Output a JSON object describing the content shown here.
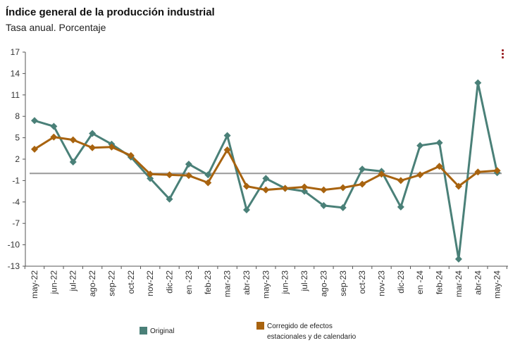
{
  "header": {
    "title": "Índice general de la producción industrial",
    "subtitle": "Tasa anual. Porcentaje"
  },
  "menu_icon": "vertical-dots-icon",
  "colors": {
    "original": "#4a8078",
    "corregido": "#a8630f",
    "reference_line": "#999999",
    "axis": "#555555",
    "menu": "#9b2226"
  },
  "chart_data": {
    "type": "line",
    "title": "Índice general de la producción industrial",
    "subtitle": "Tasa anual. Porcentaje",
    "x": [
      "may-22",
      "jun-22",
      "jul-22",
      "ago-22",
      "sep-22",
      "oct-22",
      "nov-22",
      "dic-22",
      "ene-23",
      "feb-23",
      "mar-23",
      "abr-23",
      "may-23",
      "jun-23",
      "jul-23",
      "ago-23",
      "sep-23",
      "oct-23",
      "nov-23",
      "dic-23",
      "ene-24",
      "feb-24",
      "mar-24",
      "abr-24",
      "may-24"
    ],
    "x_tick_labels": [
      "may-22",
      "jun-22",
      "jul-22",
      "ago-22",
      "sep-22",
      "oct-22",
      "nov-22",
      "dic-22",
      "en -23",
      "feb-23",
      "mar-23",
      "abr-23",
      "may-23",
      "jun-23",
      "jul-23",
      "ago-23",
      "sep-23",
      "oct-23",
      "nov-23",
      "dic-23",
      "en -24",
      "feb-24",
      "mar-24",
      "abr-24",
      "may-24"
    ],
    "y_ticks": [
      17,
      14,
      11,
      8,
      5,
      2,
      -1,
      -4,
      -7,
      -10,
      -13
    ],
    "ylim": [
      -13,
      17
    ],
    "reference_line": 0,
    "series": [
      {
        "name": "Original",
        "values": [
          7.4,
          6.6,
          1.6,
          5.6,
          4.1,
          2.3,
          -0.7,
          -3.6,
          1.3,
          -0.2,
          5.3,
          -5.1,
          -0.7,
          -2.1,
          -2.5,
          -4.5,
          -4.8,
          0.6,
          0.3,
          -4.7,
          3.9,
          4.3,
          -12.0,
          12.7,
          0.1
        ]
      },
      {
        "name": "Corregido de efectos estacionales y de calendario",
        "values": [
          3.4,
          5.1,
          4.7,
          3.6,
          3.7,
          2.5,
          -0.1,
          -0.2,
          -0.3,
          -1.3,
          3.3,
          -1.8,
          -2.3,
          -2.1,
          -1.9,
          -2.3,
          -2.0,
          -1.5,
          -0.1,
          -1.0,
          -0.2,
          1.0,
          -1.8,
          0.2,
          0.4
        ]
      }
    ],
    "legend": [
      {
        "label": "Original"
      },
      {
        "label": "Corregido de efectos estacionales y de calendario"
      }
    ],
    "legend_position": "bottom",
    "grid": false
  }
}
